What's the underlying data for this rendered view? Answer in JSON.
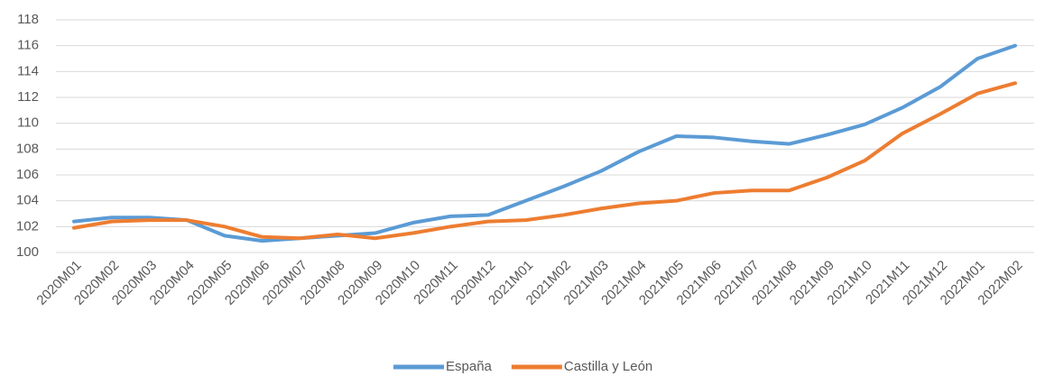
{
  "chart_data": {
    "type": "line",
    "categories": [
      "2020M01",
      "2020M02",
      "2020M03",
      "2020M04",
      "2020M05",
      "2020M06",
      "2020M07",
      "2020M08",
      "2020M09",
      "2020M10",
      "2020M11",
      "2020M12",
      "2021M01",
      "2021M02",
      "2021M03",
      "2021M04",
      "2021M05",
      "2021M06",
      "2021M07",
      "2021M08",
      "2021M09",
      "2021M10",
      "2021M11",
      "2021M12",
      "2022M01",
      "2022M02"
    ],
    "series": [
      {
        "name": "España",
        "color": "#5b9bd5",
        "values": [
          102.4,
          102.7,
          102.7,
          102.5,
          101.3,
          100.9,
          101.1,
          101.3,
          101.5,
          102.3,
          102.8,
          102.9,
          104.0,
          105.1,
          106.3,
          107.8,
          109.0,
          108.9,
          108.6,
          108.4,
          109.1,
          109.9,
          111.2,
          112.8,
          115.0,
          116.0
        ]
      },
      {
        "name": "Castilla y León",
        "color": "#ed7d31",
        "values": [
          101.9,
          102.4,
          102.5,
          102.5,
          102.0,
          101.2,
          101.1,
          101.4,
          101.1,
          101.5,
          102.0,
          102.4,
          102.5,
          102.9,
          103.4,
          103.8,
          104.0,
          104.6,
          104.8,
          104.8,
          105.8,
          107.1,
          109.2,
          110.7,
          112.3,
          113.1
        ]
      }
    ],
    "ylim": [
      100,
      118
    ],
    "yticks": [
      100,
      102,
      104,
      106,
      108,
      110,
      112,
      114,
      116,
      118
    ],
    "grid": true,
    "legend": "bottom"
  }
}
